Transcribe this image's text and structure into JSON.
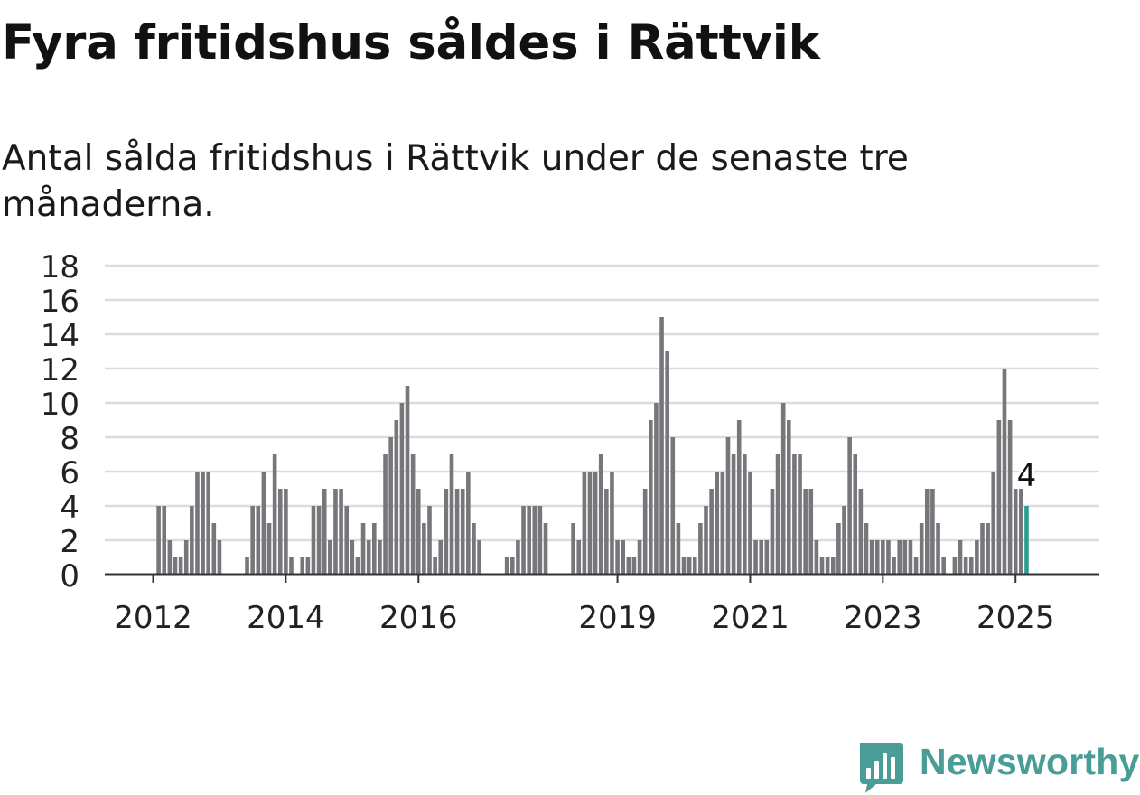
{
  "header": {
    "title": "Fyra fritidshus såldes i Rättvik",
    "subtitle": "Antal sålda fritidshus i Rättvik under de senaste tre månaderna."
  },
  "brand": {
    "name": "Newsworthy",
    "icon": "newsworthy-logo-icon",
    "color": "#4a9d97"
  },
  "colors": {
    "bar": "#77767b",
    "highlight": "#2a9d8f",
    "grid": "#dcdcdc",
    "axis": "#333333"
  },
  "chart_data": {
    "type": "bar",
    "title": "Fyra fritidshus såldes i Rättvik",
    "subtitle": "Antal sålda fritidshus i Rättvik under de senaste tre månaderna.",
    "xlabel": "",
    "ylabel": "",
    "ylim": [
      0,
      18
    ],
    "yticks": [
      0,
      2,
      4,
      6,
      8,
      10,
      12,
      14,
      16,
      18
    ],
    "xticks": [
      "2012",
      "2014",
      "2016",
      "2019",
      "2021",
      "2023",
      "2025"
    ],
    "grid": true,
    "legend": "none",
    "annotation": {
      "label": "4",
      "target": "last"
    },
    "series": [
      {
        "values": [
          null,
          4,
          4,
          2,
          1,
          1,
          2,
          4,
          6,
          6,
          6,
          3,
          2,
          null,
          null,
          null,
          null,
          1,
          4,
          4,
          6,
          3,
          7,
          5,
          5,
          1,
          null,
          1,
          1,
          4,
          4,
          5,
          2,
          5,
          5,
          4,
          2,
          1,
          3,
          2,
          3,
          2,
          7,
          8,
          9,
          10,
          11,
          7,
          5,
          3,
          4,
          1,
          2,
          5,
          7,
          5,
          5,
          6,
          3,
          2,
          null,
          null,
          null,
          null,
          1,
          1,
          2,
          4,
          4,
          4,
          4,
          3,
          null,
          null,
          null,
          null,
          3,
          2,
          6,
          6,
          6,
          7,
          5,
          6,
          2,
          2,
          1,
          1,
          2,
          5,
          9,
          10,
          15,
          13,
          8,
          3,
          1,
          1,
          1,
          3,
          4,
          5,
          6,
          6,
          8,
          7,
          9,
          7,
          6,
          2,
          2,
          2,
          5,
          7,
          10,
          9,
          7,
          7,
          5,
          5,
          2,
          1,
          1,
          1,
          3,
          4,
          8,
          7,
          5,
          3,
          2,
          2,
          2,
          2,
          1,
          2,
          2,
          2,
          1,
          3,
          5,
          5,
          3,
          1,
          null,
          1,
          2,
          1,
          1,
          2,
          3,
          3,
          6,
          9,
          12,
          9,
          5,
          5,
          4
        ]
      }
    ]
  }
}
